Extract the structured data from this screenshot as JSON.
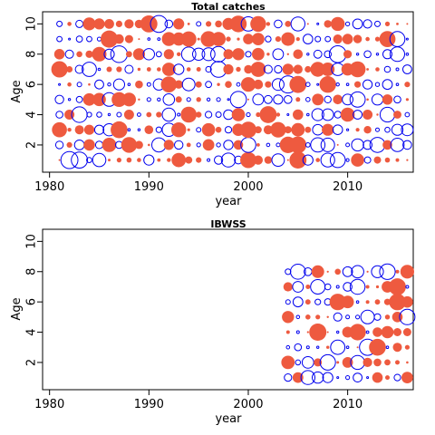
{
  "colors": {
    "positive": "#ee5a3f",
    "negative": "#0000ee",
    "axis": "#000000"
  },
  "chart_data": [
    {
      "type": "scatter",
      "title": "Total catches",
      "xlabel": "year",
      "ylabel": "Age",
      "xlim": [
        1979.3,
        2016.6
      ],
      "ylim": [
        0.2,
        10.8
      ],
      "xticks": [
        1980,
        1990,
        2000,
        2010
      ],
      "yticks": [
        2,
        4,
        6,
        8,
        10
      ],
      "x_range": [
        1981,
        2016
      ],
      "ages": [
        1,
        2,
        3,
        4,
        5,
        6,
        7,
        8,
        9,
        10
      ],
      "grid": false,
      "legend": "none",
      "encoding": "bubble residuals: filled = positive, open = negative, size = magnitude"
    },
    {
      "type": "scatter",
      "title": "IBWSS",
      "xlabel": "year",
      "ylabel": "Age",
      "xlim": [
        1979.3,
        2016.6
      ],
      "ylim": [
        0.2,
        10.8
      ],
      "xticks": [
        1980,
        1990,
        2000,
        2010
      ],
      "yticks": [
        2,
        4,
        6,
        8,
        10
      ],
      "x_range": [
        2004,
        2016
      ],
      "ages": [
        1,
        2,
        3,
        4,
        5,
        6,
        7,
        8
      ],
      "grid": false,
      "legend": "none",
      "encoding": "bubble residuals: filled = positive, open = negative, size = magnitude"
    }
  ]
}
